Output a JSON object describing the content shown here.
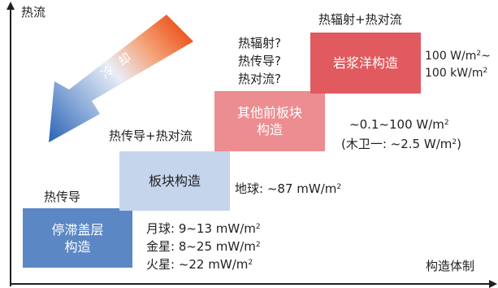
{
  "y_axis_label": "热流",
  "x_axis_label": "构造体制",
  "cooling_label": "冷 却",
  "boxes": [
    {
      "lines": [
        "停滞盖层",
        "构造"
      ],
      "color": "#5b87c5",
      "text_color": "#ffffff"
    },
    {
      "lines": [
        "板块构造"
      ],
      "color": "#c5d5ec",
      "text_color": "#231f20"
    },
    {
      "lines": [
        "其他前板块",
        "构造"
      ],
      "color": "#ec8d91",
      "text_color": "#ffffff"
    },
    {
      "lines": [
        "岩浆洋构造"
      ],
      "color": "#e05a5f",
      "text_color": "#ffffff"
    }
  ],
  "mechanisms": {
    "stagnant_lid": "热传导",
    "plate": "热传导+热对流",
    "pre_plate": [
      "热辐射?",
      "热传导?",
      "热对流?"
    ],
    "magma_ocean": "热辐射+热对流"
  },
  "heat_flow": {
    "moon": {
      "label": "月球: 9~13 mW/m",
      "exp": "2"
    },
    "venus": {
      "label": "金星: 8~25 mW/m",
      "exp": "2"
    },
    "mars": {
      "label": "火星: ~22 mW/m",
      "exp": "2"
    },
    "earth": {
      "label": "地球: ~87 mW/m",
      "exp": "2"
    },
    "pre_plate_range": {
      "label": "~0.1~100 W/m",
      "exp": "2"
    },
    "io": {
      "prefix": "(木卫一: ~2.5 W/m",
      "exp": "2",
      "suffix": ")"
    },
    "magma_ocean_1": {
      "label": "100 W/m",
      "exp": "2",
      "suffix": "~"
    },
    "magma_ocean_2": {
      "label": "100 kW/m",
      "exp": "2"
    }
  },
  "colors": {
    "axis": "#231f20",
    "arrow_hot": "#ee5a24",
    "arrow_cold": "#2a62b5"
  }
}
